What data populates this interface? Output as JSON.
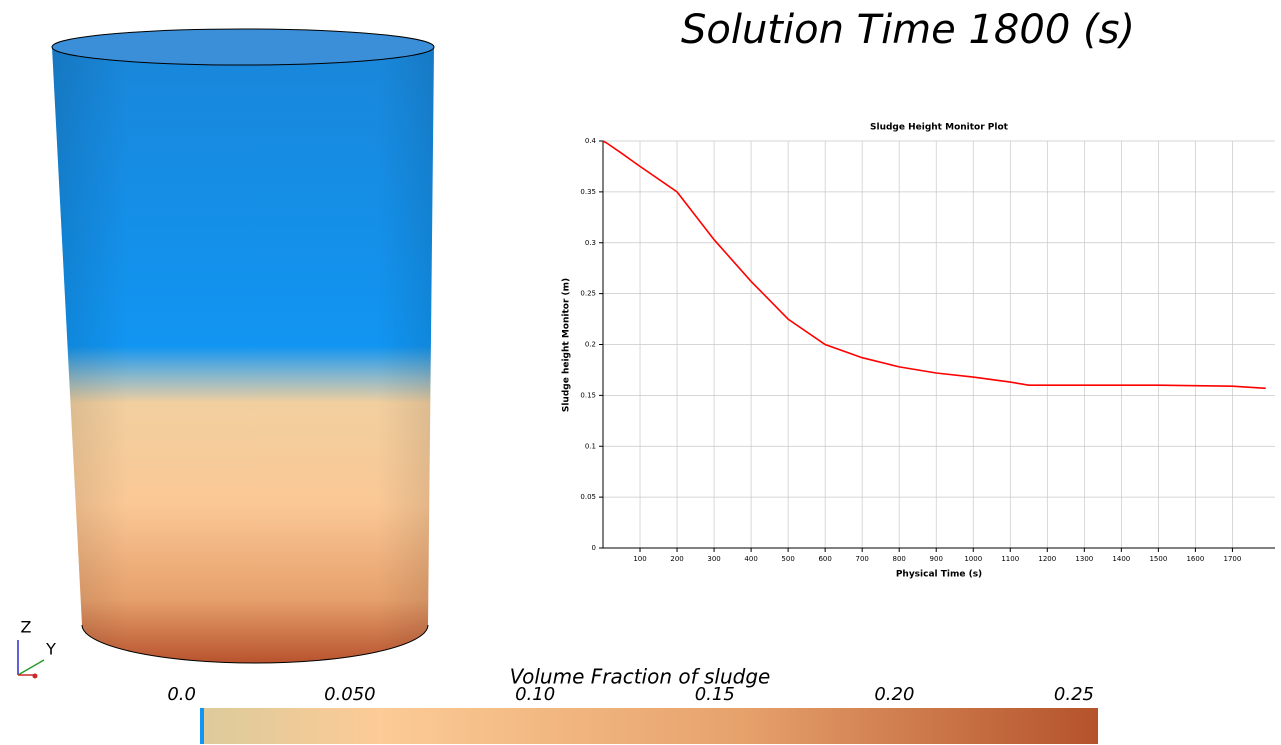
{
  "title": "Solution Time 1800 (s)",
  "axes_triad": {
    "z": "Z",
    "y": "Y"
  },
  "colorbar": {
    "title": "Volume Fraction of sludge",
    "lim": [
      0,
      0.25
    ],
    "ticks": [
      {
        "value": 0,
        "label": "0.0"
      },
      {
        "value": 0.05,
        "label": "0.050"
      },
      {
        "value": 0.1,
        "label": "0.10"
      },
      {
        "value": 0.15,
        "label": "0.15"
      },
      {
        "value": 0.2,
        "label": "0.20"
      },
      {
        "value": 0.25,
        "label": "0.25"
      }
    ]
  },
  "chart_data": {
    "type": "line",
    "title": "Sludge Height Monitor Plot",
    "xlabel": "Physical Time (s)",
    "ylabel": "Sludge height Monitor (m)",
    "x": [
      0,
      10,
      50,
      100,
      200,
      300,
      400,
      500,
      600,
      700,
      800,
      900,
      1000,
      1100,
      1150,
      1300,
      1500,
      1700,
      1790
    ],
    "values": [
      0.4,
      0.398,
      0.388,
      0.375,
      0.35,
      0.303,
      0.262,
      0.225,
      0.2,
      0.187,
      0.178,
      0.172,
      0.168,
      0.163,
      0.16,
      0.16,
      0.16,
      0.159,
      0.157
    ],
    "color": "#ff0000",
    "xlim": [
      0,
      1815
    ],
    "ylim": [
      0,
      0.4
    ],
    "xticks": [
      100,
      200,
      300,
      400,
      500,
      600,
      700,
      800,
      900,
      1000,
      1100,
      1200,
      1300,
      1400,
      1500,
      1600,
      1700
    ],
    "yticks": [
      0,
      0.05,
      0.1,
      0.15,
      0.2,
      0.25,
      0.3,
      0.35,
      0.4
    ],
    "grid": true
  }
}
